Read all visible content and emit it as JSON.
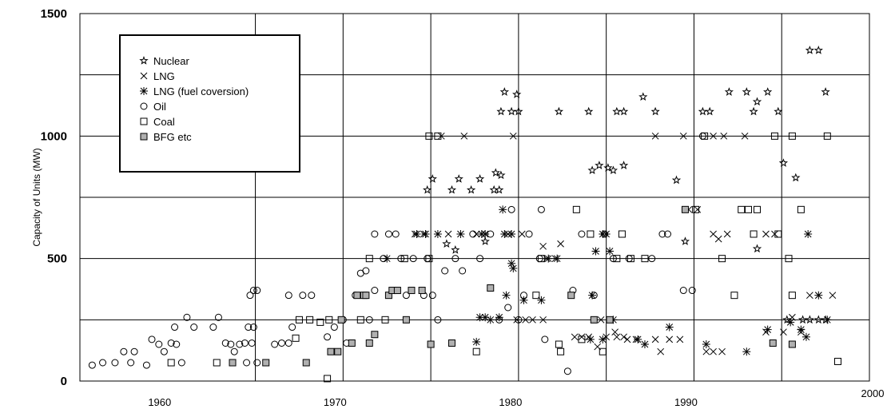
{
  "chart_data": {
    "type": "scatter",
    "title": "",
    "xlabel": "",
    "ylabel": "Capacity of Units (MW)",
    "xlim": [
      1955,
      2000
    ],
    "ylim": [
      0,
      1500
    ],
    "x_ticks": [
      "1960",
      "1970",
      "1980",
      "1990",
      "2000"
    ],
    "y_ticks": [
      "0",
      "500",
      "1000",
      "1500"
    ],
    "grid": true,
    "legend_position": "top-left",
    "series": [
      {
        "name": "Nuclear",
        "marker": "star",
        "points": [
          [
            1974.8,
            780
          ],
          [
            1975.1,
            825
          ],
          [
            1976.2,
            780
          ],
          [
            1976.6,
            825
          ],
          [
            1977.3,
            780
          ],
          [
            1977.8,
            825
          ],
          [
            1978.6,
            780
          ],
          [
            1978.9,
            780
          ],
          [
            1979.0,
            840
          ],
          [
            1978.7,
            850
          ],
          [
            1979.2,
            1180
          ],
          [
            1979.6,
            1100
          ],
          [
            1979.9,
            1170
          ],
          [
            1979.0,
            1100
          ],
          [
            1980.0,
            1100
          ],
          [
            1975.9,
            560
          ],
          [
            1976.4,
            535
          ],
          [
            1978.1,
            570
          ],
          [
            1984.2,
            860
          ],
          [
            1984.6,
            880
          ],
          [
            1985.1,
            870
          ],
          [
            1985.4,
            860
          ],
          [
            1986.0,
            880
          ],
          [
            1982.3,
            1100
          ],
          [
            1984.0,
            1100
          ],
          [
            1985.6,
            1100
          ],
          [
            1986.0,
            1100
          ],
          [
            1987.1,
            1160
          ],
          [
            1987.8,
            1100
          ],
          [
            1989.0,
            820
          ],
          [
            1989.5,
            570
          ],
          [
            1990.5,
            1100
          ],
          [
            1990.9,
            1100
          ],
          [
            1992.0,
            1180
          ],
          [
            1993.0,
            1180
          ],
          [
            1993.4,
            1100
          ],
          [
            1993.6,
            1140
          ],
          [
            1994.2,
            1180
          ],
          [
            1994.8,
            1100
          ],
          [
            1995.1,
            890
          ],
          [
            1995.8,
            830
          ],
          [
            1993.6,
            540
          ],
          [
            1996.6,
            1350
          ],
          [
            1997.1,
            1350
          ],
          [
            1997.5,
            1180
          ],
          [
            1995.3,
            250
          ],
          [
            1996.2,
            250
          ],
          [
            1996.6,
            250
          ],
          [
            1997.1,
            250
          ],
          [
            1997.5,
            250
          ]
        ]
      },
      {
        "name": "LNG",
        "marker": "x",
        "points": [
          [
            1975.6,
            1000
          ],
          [
            1976.9,
            1000
          ],
          [
            1979.7,
            1000
          ],
          [
            1974.1,
            600
          ],
          [
            1974.6,
            600
          ],
          [
            1976.0,
            600
          ],
          [
            1977.6,
            600
          ],
          [
            1979.4,
            600
          ],
          [
            1980.2,
            600
          ],
          [
            1981.4,
            550
          ],
          [
            1981.6,
            500
          ],
          [
            1982.1,
            500
          ],
          [
            1982.4,
            560
          ],
          [
            1979.9,
            250
          ],
          [
            1980.4,
            250
          ],
          [
            1980.8,
            250
          ],
          [
            1981.4,
            250
          ],
          [
            1983.2,
            180
          ],
          [
            1983.6,
            180
          ],
          [
            1984.0,
            180
          ],
          [
            1984.5,
            140
          ],
          [
            1985.0,
            180
          ],
          [
            1985.6,
            180
          ],
          [
            1986.0,
            180
          ],
          [
            1986.2,
            170
          ],
          [
            1986.7,
            170
          ],
          [
            1984.7,
            250
          ],
          [
            1985.5,
            200
          ],
          [
            1987.8,
            1000
          ],
          [
            1989.4,
            1000
          ],
          [
            1989.7,
            700
          ],
          [
            1990.2,
            700
          ],
          [
            1991.1,
            600
          ],
          [
            1991.4,
            580
          ],
          [
            1991.9,
            600
          ],
          [
            1991.1,
            1000
          ],
          [
            1991.7,
            1000
          ],
          [
            1992.9,
            1000
          ],
          [
            1994.1,
            600
          ],
          [
            1994.6,
            600
          ],
          [
            1987.8,
            170
          ],
          [
            1988.1,
            120
          ],
          [
            1988.6,
            170
          ],
          [
            1989.2,
            170
          ],
          [
            1990.7,
            120
          ],
          [
            1991.1,
            120
          ],
          [
            1991.6,
            120
          ],
          [
            1994.1,
            200
          ],
          [
            1995.1,
            200
          ],
          [
            1995.6,
            260
          ],
          [
            1996.1,
            200
          ],
          [
            1996.6,
            350
          ],
          [
            1997.1,
            350
          ],
          [
            1997.9,
            350
          ]
        ]
      },
      {
        "name": "LNG (fuel coversion)",
        "marker": "asterisk",
        "points": [
          [
            1974.7,
            600
          ],
          [
            1975.4,
            600
          ],
          [
            1976.7,
            600
          ],
          [
            1978.1,
            600
          ],
          [
            1979.2,
            600
          ],
          [
            1979.6,
            600
          ],
          [
            1979.7,
            460
          ],
          [
            1979.6,
            480
          ],
          [
            1972.5,
            500
          ],
          [
            1974.2,
            600
          ],
          [
            1977.8,
            260
          ],
          [
            1978.1,
            260
          ],
          [
            1978.4,
            250
          ],
          [
            1978.9,
            260
          ],
          [
            1977.6,
            160
          ],
          [
            1977.9,
            600
          ],
          [
            1979.1,
            700
          ],
          [
            1979.3,
            350
          ],
          [
            1980.3,
            330
          ],
          [
            1981.3,
            330
          ],
          [
            1981.7,
            500
          ],
          [
            1982.2,
            500
          ],
          [
            1984.4,
            530
          ],
          [
            1984.8,
            600
          ],
          [
            1985.2,
            530
          ],
          [
            1984.2,
            350
          ],
          [
            1985.0,
            600
          ],
          [
            1985.4,
            250
          ],
          [
            1984.1,
            170
          ],
          [
            1984.8,
            170
          ],
          [
            1986.8,
            170
          ],
          [
            1987.2,
            150
          ],
          [
            1988.6,
            220
          ],
          [
            1990.7,
            150
          ],
          [
            1993.0,
            120
          ],
          [
            1994.2,
            210
          ],
          [
            1995.5,
            240
          ],
          [
            1996.1,
            210
          ],
          [
            1996.4,
            180
          ],
          [
            1996.5,
            600
          ],
          [
            1997.1,
            350
          ],
          [
            1997.6,
            250
          ]
        ]
      },
      {
        "name": "Oil",
        "marker": "circle",
        "points": [
          [
            1955.7,
            65
          ],
          [
            1956.3,
            75
          ],
          [
            1957.0,
            75
          ],
          [
            1957.5,
            120
          ],
          [
            1957.9,
            75
          ],
          [
            1958.1,
            120
          ],
          [
            1958.8,
            65
          ],
          [
            1959.1,
            170
          ],
          [
            1959.5,
            150
          ],
          [
            1959.8,
            120
          ],
          [
            1960.2,
            155
          ],
          [
            1960.5,
            150
          ],
          [
            1960.4,
            220
          ],
          [
            1960.8,
            75
          ],
          [
            1961.1,
            260
          ],
          [
            1961.5,
            220
          ],
          [
            1962.6,
            220
          ],
          [
            1962.9,
            260
          ],
          [
            1963.3,
            155
          ],
          [
            1963.6,
            150
          ],
          [
            1963.8,
            120
          ],
          [
            1964.1,
            150
          ],
          [
            1964.4,
            155
          ],
          [
            1964.6,
            220
          ],
          [
            1964.5,
            75
          ],
          [
            1964.9,
            220
          ],
          [
            1964.7,
            350
          ],
          [
            1964.9,
            370
          ],
          [
            1965.1,
            370
          ],
          [
            1964.8,
            155
          ],
          [
            1965.1,
            75
          ],
          [
            1966.1,
            150
          ],
          [
            1966.5,
            155
          ],
          [
            1966.9,
            155
          ],
          [
            1967.1,
            220
          ],
          [
            1966.9,
            350
          ],
          [
            1967.7,
            350
          ],
          [
            1968.2,
            350
          ],
          [
            1969.1,
            180
          ],
          [
            1969.5,
            220
          ],
          [
            1970.0,
            250
          ],
          [
            1970.2,
            155
          ],
          [
            1970.7,
            350
          ],
          [
            1971.0,
            440
          ],
          [
            1971.3,
            450
          ],
          [
            1971.5,
            250
          ],
          [
            1971.8,
            370
          ],
          [
            1971.8,
            600
          ],
          [
            1972.3,
            500
          ],
          [
            1972.6,
            600
          ],
          [
            1973.0,
            600
          ],
          [
            1973.3,
            500
          ],
          [
            1973.6,
            350
          ],
          [
            1974.0,
            500
          ],
          [
            1974.6,
            350
          ],
          [
            1974.8,
            500
          ],
          [
            1975.1,
            350
          ],
          [
            1975.4,
            250
          ],
          [
            1975.8,
            450
          ],
          [
            1976.4,
            500
          ],
          [
            1976.8,
            450
          ],
          [
            1977.4,
            600
          ],
          [
            1977.8,
            500
          ],
          [
            1978.4,
            600
          ],
          [
            1978.9,
            250
          ],
          [
            1979.4,
            300
          ],
          [
            1979.6,
            700
          ],
          [
            1980.0,
            250
          ],
          [
            1980.3,
            350
          ],
          [
            1980.6,
            600
          ],
          [
            1981.2,
            500
          ],
          [
            1981.3,
            700
          ],
          [
            1981.5,
            170
          ],
          [
            1982.8,
            40
          ],
          [
            1983.1,
            370
          ],
          [
            1983.6,
            600
          ],
          [
            1984.3,
            350
          ],
          [
            1984.9,
            600
          ],
          [
            1985.4,
            500
          ],
          [
            1986.3,
            500
          ],
          [
            1987.6,
            500
          ],
          [
            1988.2,
            600
          ],
          [
            1988.5,
            600
          ],
          [
            1989.4,
            370
          ],
          [
            1989.9,
            370
          ],
          [
            1990.5,
            1000
          ]
        ]
      },
      {
        "name": "Coal",
        "marker": "square",
        "points": [
          [
            1960.2,
            75
          ],
          [
            1962.8,
            75
          ],
          [
            1967.3,
            175
          ],
          [
            1967.5,
            250
          ],
          [
            1968.1,
            250
          ],
          [
            1968.7,
            240
          ],
          [
            1969.2,
            250
          ],
          [
            1969.1,
            10
          ],
          [
            1971.0,
            250
          ],
          [
            1971.2,
            350
          ],
          [
            1971.5,
            500
          ],
          [
            1972.4,
            250
          ],
          [
            1973.5,
            500
          ],
          [
            1974.9,
            500
          ],
          [
            1974.9,
            1000
          ],
          [
            1975.4,
            1000
          ],
          [
            1977.6,
            120
          ],
          [
            1981.0,
            350
          ],
          [
            1981.3,
            500
          ],
          [
            1982.4,
            120
          ],
          [
            1982.3,
            150
          ],
          [
            1983.3,
            700
          ],
          [
            1983.6,
            170
          ],
          [
            1984.1,
            600
          ],
          [
            1984.8,
            120
          ],
          [
            1985.6,
            500
          ],
          [
            1985.9,
            600
          ],
          [
            1986.4,
            500
          ],
          [
            1987.2,
            500
          ],
          [
            1990.1,
            700
          ],
          [
            1990.6,
            1000
          ],
          [
            1991.6,
            500
          ],
          [
            1992.3,
            350
          ],
          [
            1992.7,
            700
          ],
          [
            1993.1,
            700
          ],
          [
            1993.4,
            600
          ],
          [
            1993.6,
            700
          ],
          [
            1994.6,
            1000
          ],
          [
            1994.8,
            600
          ],
          [
            1995.4,
            500
          ],
          [
            1995.6,
            1000
          ],
          [
            1995.6,
            350
          ],
          [
            1996.1,
            700
          ],
          [
            1997.6,
            1000
          ],
          [
            1998.2,
            80
          ]
        ]
      },
      {
        "name": "BFG etc",
        "marker": "filled-square",
        "points": [
          [
            1963.7,
            75
          ],
          [
            1965.6,
            75
          ],
          [
            1967.9,
            75
          ],
          [
            1969.3,
            120
          ],
          [
            1969.7,
            120
          ],
          [
            1969.9,
            250
          ],
          [
            1970.5,
            155
          ],
          [
            1970.8,
            350
          ],
          [
            1971.3,
            350
          ],
          [
            1971.5,
            155
          ],
          [
            1971.8,
            190
          ],
          [
            1972.6,
            350
          ],
          [
            1972.8,
            370
          ],
          [
            1973.1,
            370
          ],
          [
            1973.6,
            250
          ],
          [
            1973.9,
            370
          ],
          [
            1974.5,
            370
          ],
          [
            1975.0,
            150
          ],
          [
            1976.2,
            155
          ],
          [
            1978.4,
            380
          ],
          [
            1983.0,
            350
          ],
          [
            1984.3,
            250
          ],
          [
            1985.2,
            250
          ],
          [
            1989.5,
            700
          ],
          [
            1994.5,
            155
          ],
          [
            1995.6,
            150
          ]
        ]
      }
    ]
  }
}
